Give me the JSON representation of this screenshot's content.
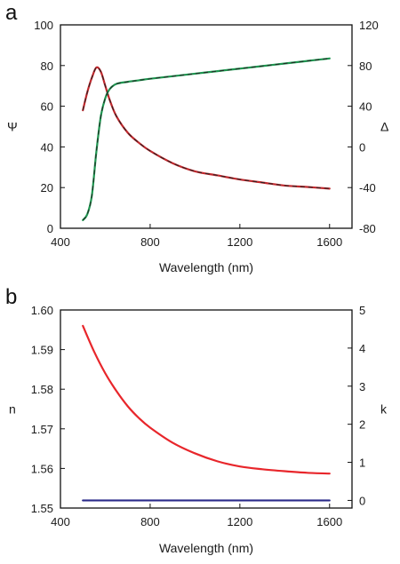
{
  "chart_data": [
    {
      "panel_label": "a",
      "type": "line",
      "xlabel": "Wavelength (nm)",
      "ylabel": "Ψ",
      "ylabel_right": "Δ",
      "xlim": [
        400,
        1700
      ],
      "ylim": [
        0,
        100
      ],
      "ylim_right": [
        -80,
        120
      ],
      "xticks": [
        400,
        800,
        1200,
        1600
      ],
      "yticks": [
        0,
        20,
        40,
        60,
        80,
        100
      ],
      "yticks_right": [
        -80,
        -40,
        0,
        40,
        80,
        120
      ],
      "grid": false,
      "series": [
        {
          "axis": "left",
          "color": "#c0282d",
          "fit_color": "#222222",
          "x": [
            500,
            520,
            540,
            560,
            580,
            600,
            620,
            650,
            700,
            750,
            800,
            900,
            1000,
            1100,
            1200,
            1300,
            1400,
            1500,
            1600
          ],
          "values": [
            58,
            67,
            74,
            79,
            77,
            70,
            63,
            55,
            47,
            42,
            38,
            32,
            28,
            26,
            24,
            22.5,
            21,
            20.3,
            19.5
          ]
        },
        {
          "axis": "right",
          "color": "#1e9650",
          "fit_color": "#222222",
          "x": [
            500,
            520,
            540,
            560,
            580,
            600,
            620,
            650,
            700,
            750,
            800,
            900,
            1000,
            1100,
            1200,
            1300,
            1400,
            1500,
            1600
          ],
          "values": [
            -72,
            -66,
            -48,
            -5,
            30,
            48,
            57,
            62,
            64,
            65.5,
            67,
            69.5,
            72,
            74.5,
            77,
            79.5,
            82,
            84.5,
            87
          ]
        }
      ]
    },
    {
      "panel_label": "b",
      "type": "line",
      "xlabel": "Wavelength (nm)",
      "ylabel": "n",
      "ylabel_right": "k",
      "xlim": [
        400,
        1700
      ],
      "ylim": [
        1.55,
        1.6
      ],
      "ylim_right": [
        -0.2,
        5
      ],
      "xticks": [
        400,
        800,
        1200,
        1600
      ],
      "yticks": [
        1.55,
        1.56,
        1.57,
        1.58,
        1.59,
        1.6
      ],
      "ytick_labels": [
        "1.55",
        "1.56",
        "1.57",
        "1.58",
        "1.59",
        "1.60"
      ],
      "yticks_right": [
        0,
        1,
        2,
        3,
        4,
        5
      ],
      "grid": false,
      "series": [
        {
          "axis": "left",
          "color": "#e8262b",
          "x": [
            500,
            550,
            600,
            650,
            700,
            750,
            800,
            900,
            1000,
            1100,
            1200,
            1300,
            1400,
            1500,
            1600
          ],
          "values": [
            1.596,
            1.5895,
            1.584,
            1.5795,
            1.5757,
            1.5727,
            1.5703,
            1.5665,
            1.5638,
            1.5618,
            1.5605,
            1.5598,
            1.5593,
            1.5589,
            1.5587
          ]
        },
        {
          "axis": "right",
          "color": "#2a2a8a",
          "x": [
            500,
            1600
          ],
          "values": [
            0,
            0
          ]
        }
      ]
    }
  ]
}
